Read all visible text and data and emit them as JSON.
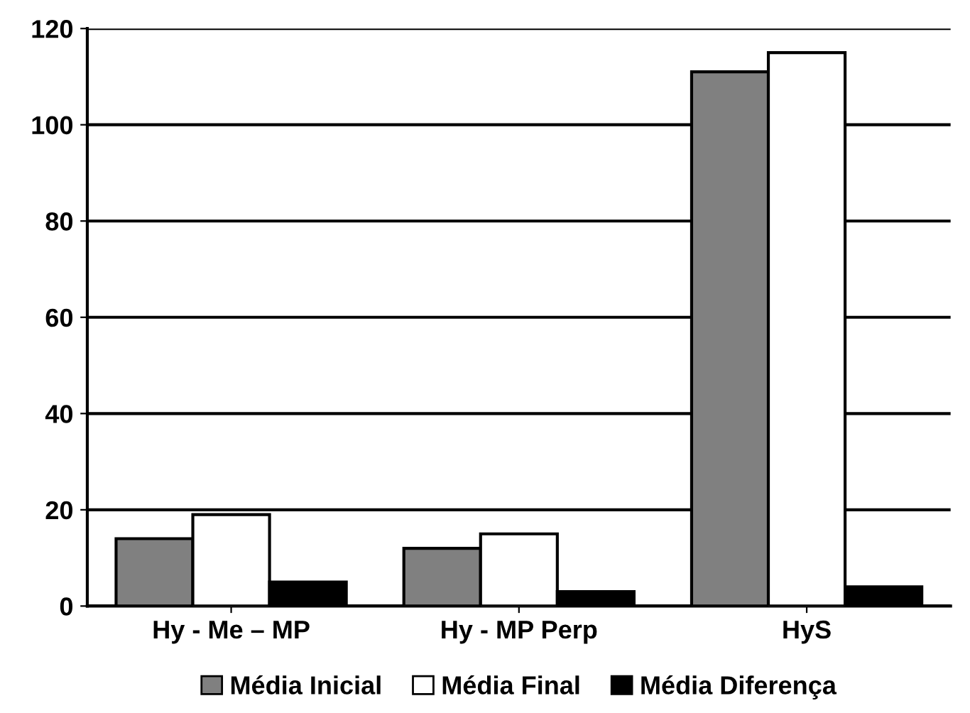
{
  "chart_data": {
    "type": "bar",
    "categories": [
      "Hy - Me – MP",
      "Hy - MP Perp",
      "HyS"
    ],
    "series": [
      {
        "name": "Média Inicial",
        "color": "#808080",
        "values": [
          14,
          12,
          111
        ]
      },
      {
        "name": "Média Final",
        "color": "#ffffff",
        "values": [
          19,
          15,
          115
        ]
      },
      {
        "name": "Média Diferença",
        "color": "#000000",
        "values": [
          5,
          3,
          4
        ]
      }
    ],
    "ylim": [
      0,
      120
    ],
    "yticks": [
      0,
      20,
      40,
      60,
      80,
      100,
      120
    ],
    "grid": "y",
    "legend": "bottom"
  }
}
